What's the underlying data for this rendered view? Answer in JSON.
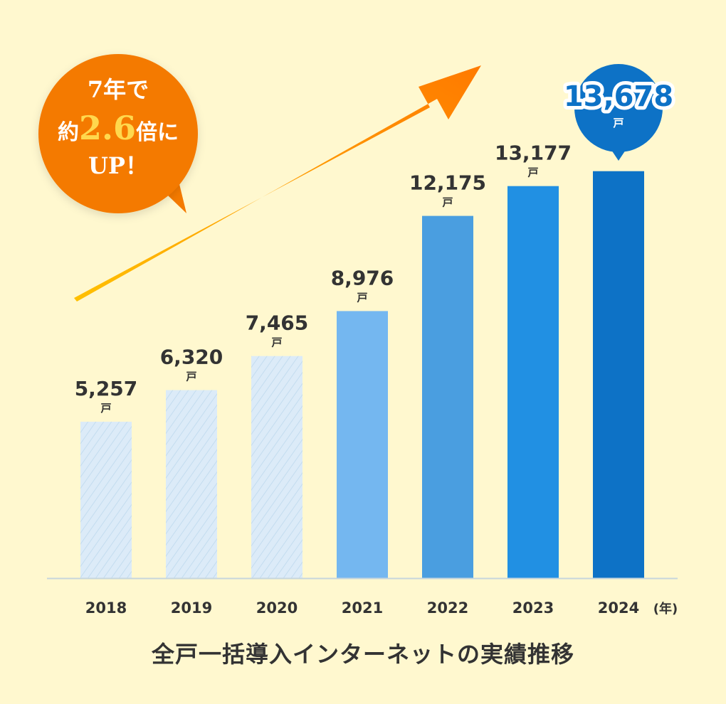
{
  "chart_data": {
    "type": "bar",
    "categories": [
      "2018",
      "2019",
      "2020",
      "2021",
      "2022",
      "2023",
      "2024"
    ],
    "values": [
      5257,
      6320,
      7465,
      8976,
      12175,
      13177,
      13678
    ],
    "value_labels": [
      "5,257",
      "6,320",
      "7,465",
      "8,976",
      "12,175",
      "13,177",
      "13,678"
    ],
    "unit_label": "戸",
    "x_unit_label": "(年)",
    "caption": "全戸一括導入インターネットの実績推移",
    "ylim": [
      0,
      15000
    ],
    "grid": false,
    "bar_colors": [
      "#dcebf8",
      "#dcebf8",
      "#dcebf8",
      "#74b7f0",
      "#4a9ee0",
      "#2190e3",
      "#0d72c6"
    ],
    "hatched_bars": [
      true,
      true,
      true,
      false,
      false,
      false,
      false
    ],
    "highlight_bubble": {
      "value_label": "13,678",
      "unit": "戸",
      "color": "#0d72c6"
    },
    "callout": {
      "line1": "7年で",
      "line2_prefix": "約",
      "line2_number": "2.6",
      "line2_suffix": "倍に",
      "line3": "UP！",
      "bubble_color": "#f47a00",
      "number_color": "#ffd84d"
    },
    "arrow": {
      "color_start": "#ffc000",
      "color_end": "#ff7a00"
    },
    "axis_color": "#c7d6dc",
    "text_color": "#333333"
  }
}
